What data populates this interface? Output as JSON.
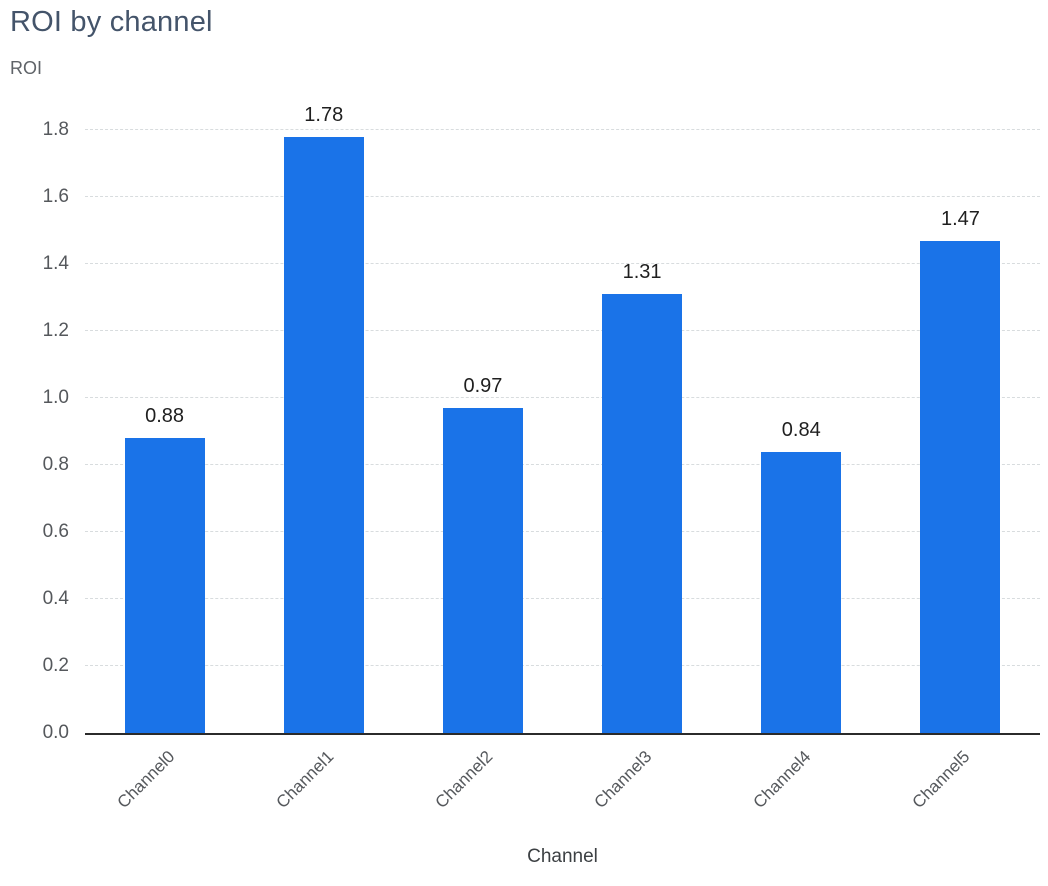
{
  "chart_data": {
    "type": "bar",
    "title": "ROI by channel",
    "xlabel": "Channel",
    "ylabel": "ROI",
    "categories": [
      "Channel0",
      "Channel1",
      "Channel2",
      "Channel3",
      "Channel4",
      "Channel5"
    ],
    "values": [
      0.88,
      1.78,
      0.97,
      1.31,
      0.84,
      1.47
    ],
    "value_labels": [
      "0.88",
      "1.78",
      "0.97",
      "1.31",
      "0.84",
      "1.47"
    ],
    "ylim": [
      0,
      1.8
    ],
    "ytick_step": 0.2,
    "ytick_labels": [
      "0.0",
      "0.2",
      "0.4",
      "0.6",
      "0.8",
      "1.0",
      "1.2",
      "1.4",
      "1.6",
      "1.8"
    ],
    "grid": "horizontal-dashed",
    "legend": "none",
    "bar_color": "#1a73e8",
    "grid_color": "#d8dcde",
    "axis_color": "#2b2b2b"
  }
}
